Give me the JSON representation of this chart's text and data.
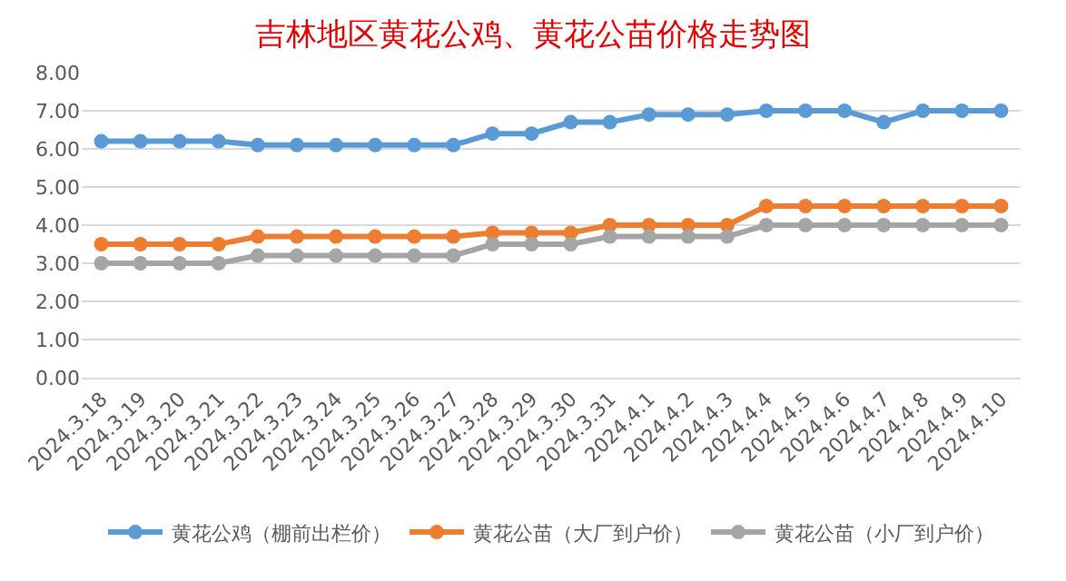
{
  "chart_data": {
    "type": "line",
    "title": "吉林地区黄花公鸡、黄花公苗价格走势图",
    "categories": [
      "2024.3.18",
      "2024.3.19",
      "2024.3.20",
      "2024.3.21",
      "2024.3.22",
      "2024.3.23",
      "2024.3.24",
      "2024.3.25",
      "2024.3.26",
      "2024.3.27",
      "2024.3.28",
      "2024.3.29",
      "2024.3.30",
      "2024.3.31",
      "2024.4.1",
      "2024.4.2",
      "2024.4.3",
      "2024.4.4",
      "2024.4.5",
      "2024.4.6",
      "2024.4.7",
      "2024.4.8",
      "2024.4.9",
      "2024.4.10"
    ],
    "series": [
      {
        "name": "黄花公鸡（棚前出栏价）",
        "color": "#5b9bd5",
        "values": [
          6.2,
          6.2,
          6.2,
          6.2,
          6.1,
          6.1,
          6.1,
          6.1,
          6.1,
          6.1,
          6.4,
          6.4,
          6.7,
          6.7,
          6.9,
          6.9,
          6.9,
          7.0,
          7.0,
          7.0,
          6.7,
          7.0,
          7.0,
          7.0
        ]
      },
      {
        "name": "黄花公苗（大厂到户价）",
        "color": "#ed7d31",
        "values": [
          3.5,
          3.5,
          3.5,
          3.5,
          3.7,
          3.7,
          3.7,
          3.7,
          3.7,
          3.7,
          3.8,
          3.8,
          3.8,
          4.0,
          4.0,
          4.0,
          4.0,
          4.5,
          4.5,
          4.5,
          4.5,
          4.5,
          4.5,
          4.5
        ]
      },
      {
        "name": "黄花公苗（小厂到户价）",
        "color": "#a5a5a5",
        "values": [
          3.0,
          3.0,
          3.0,
          3.0,
          3.2,
          3.2,
          3.2,
          3.2,
          3.2,
          3.2,
          3.5,
          3.5,
          3.5,
          3.7,
          3.7,
          3.7,
          3.7,
          4.0,
          4.0,
          4.0,
          4.0,
          4.0,
          4.0,
          4.0
        ]
      }
    ],
    "ylim": [
      0,
      8
    ],
    "yticks": [
      {
        "value": 0,
        "label": "0.00"
      },
      {
        "value": 1,
        "label": "1.00"
      },
      {
        "value": 2,
        "label": "2.00"
      },
      {
        "value": 3,
        "label": "3.00"
      },
      {
        "value": 4,
        "label": "4.00"
      },
      {
        "value": 5,
        "label": "5.00"
      },
      {
        "value": 6,
        "label": "6.00"
      },
      {
        "value": 7,
        "label": "7.00"
      },
      {
        "value": 8,
        "label": "8.00"
      }
    ],
    "grid": "y",
    "legend": "bottom",
    "marker": "circle",
    "line_style": "solid"
  }
}
